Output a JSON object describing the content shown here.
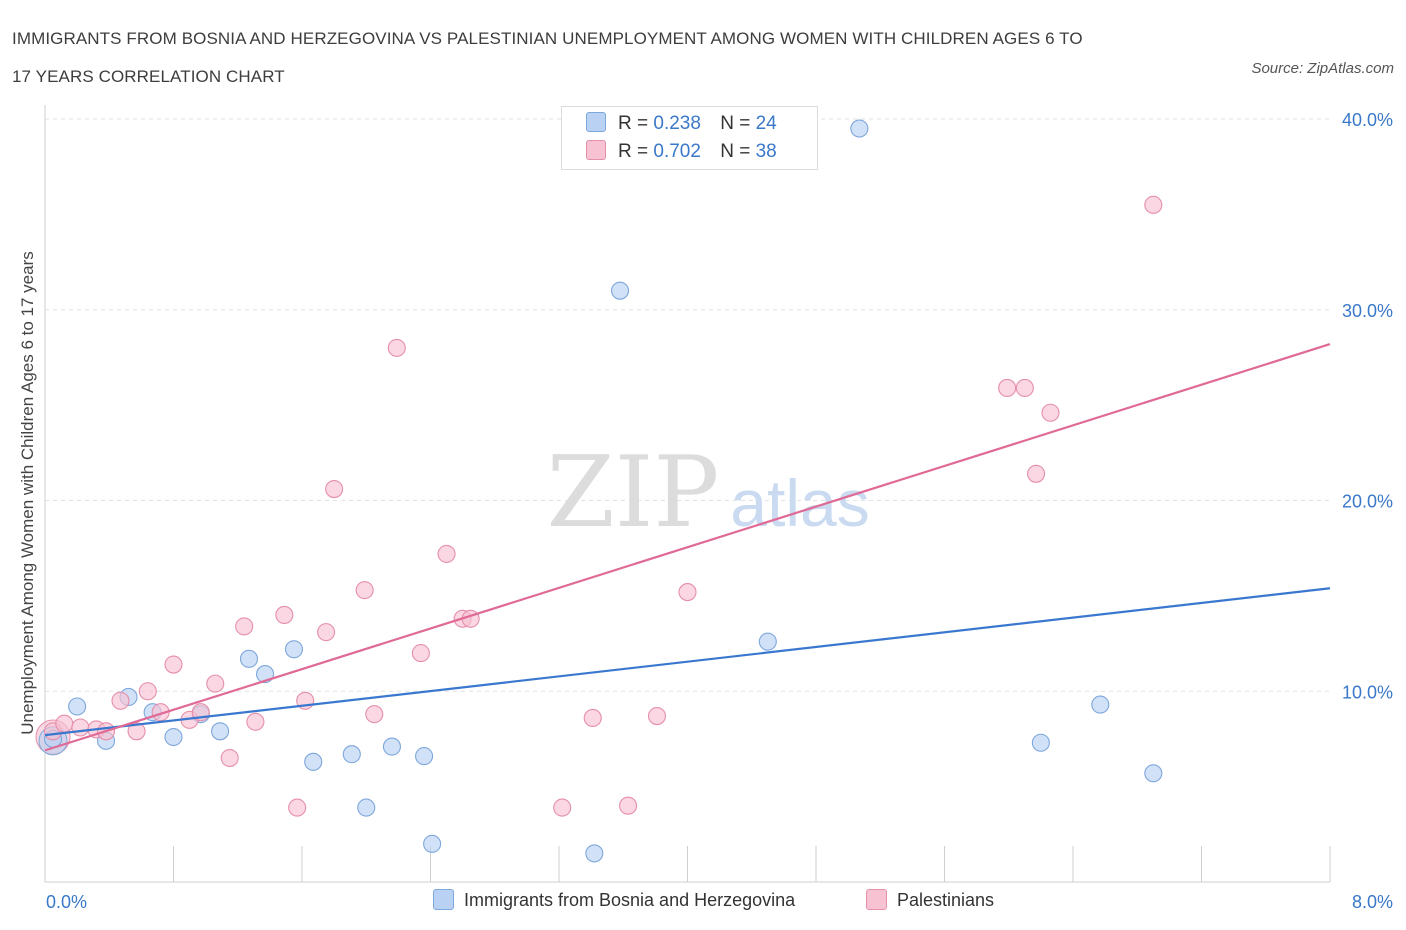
{
  "header": {
    "title_line1": "IMMIGRANTS FROM BOSNIA AND HERZEGOVINA VS PALESTINIAN UNEMPLOYMENT AMONG WOMEN WITH CHILDREN AGES 6 TO",
    "title_line2": "17 YEARS CORRELATION CHART",
    "source": "Source: ZipAtlas.com"
  },
  "watermark": {
    "zip": "ZIP",
    "atlas": "atlas"
  },
  "legend": {
    "r_label": "R =",
    "n_label": "N =",
    "rows": [
      {
        "r": "0.238",
        "n": "24"
      },
      {
        "r": "0.702",
        "n": "38"
      }
    ],
    "bottom": [
      "Immigrants from Bosnia and Herzegovina",
      "Palestinians"
    ]
  },
  "colors": {
    "blue_fill": "#b9d1f2",
    "blue_stroke": "#7ea7dc",
    "blue_line": "#3a78d0",
    "pink_fill": "#f7c2d2",
    "pink_stroke": "#e58fab",
    "pink_line": "#e06a96",
    "axis_text": "#3a78c9",
    "grid": "#e2e2e2"
  },
  "chart_data": {
    "type": "scatter",
    "title": "IMMIGRANTS FROM BOSNIA AND HERZEGOVINA VS PALESTINIAN UNEMPLOYMENT AMONG WOMEN WITH CHILDREN AGES 6 TO 17 YEARS CORRELATION CHART",
    "xlabel": "",
    "ylabel": "Unemployment Among Women with Children Ages 6 to 17 years",
    "xlim": [
      0,
      8
    ],
    "ylim": [
      0,
      40
    ],
    "x_tick_labels": [
      "0.0%",
      "8.0%"
    ],
    "y_ticks": [
      10,
      20,
      30,
      40
    ],
    "y_tick_labels": [
      "10.0%",
      "20.0%",
      "30.0%",
      "40.0%"
    ],
    "grid": true,
    "series": [
      {
        "name": "Immigrants from Bosnia and Herzegovina",
        "color": "#7ea7dc",
        "points": [
          [
            0.05,
            7.5
          ],
          [
            0.2,
            9.2
          ],
          [
            0.38,
            7.4
          ],
          [
            0.52,
            9.7
          ],
          [
            0.67,
            8.9
          ],
          [
            0.8,
            7.6
          ],
          [
            0.97,
            8.8
          ],
          [
            1.09,
            7.9
          ],
          [
            1.27,
            11.7
          ],
          [
            1.37,
            10.9
          ],
          [
            1.55,
            12.2
          ],
          [
            1.67,
            6.3
          ],
          [
            1.91,
            6.7
          ],
          [
            2.0,
            3.9
          ],
          [
            2.16,
            7.1
          ],
          [
            2.36,
            6.6
          ],
          [
            2.41,
            2.0
          ],
          [
            3.42,
            1.5
          ],
          [
            3.58,
            31.0
          ],
          [
            4.5,
            12.6
          ],
          [
            5.07,
            39.5
          ],
          [
            6.2,
            7.3
          ],
          [
            6.57,
            9.3
          ],
          [
            6.9,
            5.7
          ]
        ],
        "trend": [
          [
            0.0,
            7.7
          ],
          [
            8.0,
            15.4
          ]
        ]
      },
      {
        "name": "Palestinians",
        "color": "#e58fab",
        "points": [
          [
            0.05,
            7.9
          ],
          [
            0.12,
            8.3
          ],
          [
            0.22,
            8.1
          ],
          [
            0.32,
            8.0
          ],
          [
            0.38,
            7.9
          ],
          [
            0.47,
            9.5
          ],
          [
            0.57,
            7.9
          ],
          [
            0.64,
            10.0
          ],
          [
            0.72,
            8.9
          ],
          [
            0.8,
            11.4
          ],
          [
            0.9,
            8.5
          ],
          [
            0.97,
            8.9
          ],
          [
            1.06,
            10.4
          ],
          [
            1.15,
            6.5
          ],
          [
            1.24,
            13.4
          ],
          [
            1.31,
            8.4
          ],
          [
            1.49,
            14.0
          ],
          [
            1.57,
            3.9
          ],
          [
            1.62,
            9.5
          ],
          [
            1.75,
            13.1
          ],
          [
            1.8,
            20.6
          ],
          [
            1.99,
            15.3
          ],
          [
            2.05,
            8.8
          ],
          [
            2.19,
            28.0
          ],
          [
            2.34,
            12.0
          ],
          [
            2.5,
            17.2
          ],
          [
            2.6,
            13.8
          ],
          [
            2.65,
            13.8
          ],
          [
            3.22,
            3.9
          ],
          [
            3.41,
            8.6
          ],
          [
            3.63,
            4.0
          ],
          [
            3.81,
            8.7
          ],
          [
            4.0,
            15.2
          ],
          [
            5.99,
            25.9
          ],
          [
            6.1,
            25.9
          ],
          [
            6.17,
            21.4
          ],
          [
            6.26,
            24.6
          ],
          [
            6.9,
            35.5
          ]
        ],
        "trend": [
          [
            0.0,
            6.9
          ],
          [
            8.0,
            28.2
          ]
        ]
      }
    ]
  }
}
